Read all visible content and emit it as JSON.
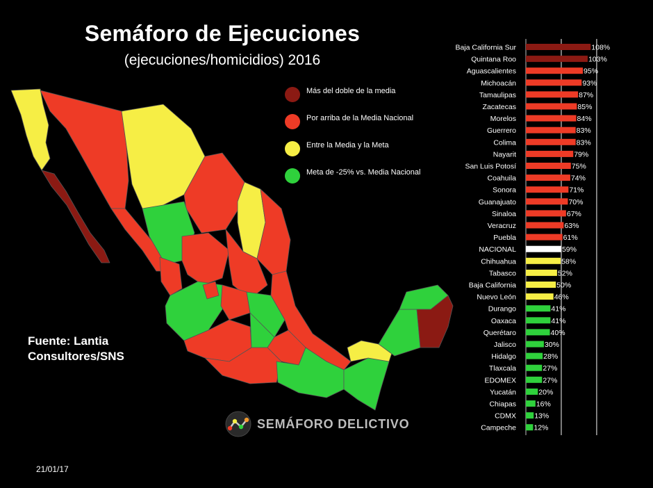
{
  "header": {
    "title": "Semáforo de Ejecuciones",
    "subtitle": "(ejecuciones/homicidios) 2016"
  },
  "legend": [
    {
      "label": "Más del doble de la media",
      "color": "#8b1a13"
    },
    {
      "label": "Por arriba de la Media Nacional",
      "color": "#ee3b26"
    },
    {
      "label": "Entre la Media y la Meta",
      "color": "#f6ee45"
    },
    {
      "label": "Meta de -25% vs. Media Nacional",
      "color": "#2fd13c"
    }
  ],
  "source": {
    "line1": "Fuente: Lantia",
    "line2": "Consultores/SNS"
  },
  "date": "21/01/17",
  "logo": {
    "text": "SEMÁFORO DELICTIVO"
  },
  "colors": {
    "dark_red": "#8b1a13",
    "red": "#ee3b26",
    "yellow": "#f6ee45",
    "green": "#2fd13c",
    "white": "#ffffff"
  },
  "chart_data": {
    "type": "bar",
    "orientation": "horizontal",
    "categories": [
      "Baja California Sur",
      "Quintana Roo",
      "Aguascalientes",
      "Michoacán",
      "Tamaulipas",
      "Zacatecas",
      "Morelos",
      "Guerrero",
      "Colima",
      "Nayarit",
      "San Luis Potosí",
      "Coahuila",
      "Sonora",
      "Guanajuato",
      "Sinaloa",
      "Veracruz",
      "Puebla",
      "NACIONAL",
      "Chihuahua",
      "Tabasco",
      "Baja California",
      "Nuevo León",
      "Durango",
      "Oaxaca",
      "Querétaro",
      "Jalisco",
      "Hidalgo",
      "Tlaxcala",
      "EDOMEX",
      "Yucatán",
      "Chiapas",
      "CDMX",
      "Campeche"
    ],
    "values": [
      108,
      103,
      95,
      93,
      87,
      85,
      84,
      83,
      83,
      79,
      75,
      74,
      71,
      70,
      67,
      63,
      61,
      59,
      58,
      52,
      50,
      46,
      41,
      41,
      40,
      30,
      28,
      27,
      27,
      20,
      16,
      13,
      12
    ],
    "value_labels": [
      "108%",
      "103%",
      "95%",
      "93%",
      "87%",
      "85%",
      "84%",
      "83%",
      "83%",
      "79%",
      "75%",
      "74%",
      "71%",
      "70%",
      "67%",
      "63%",
      "61%",
      "59%",
      "58%",
      "52%",
      "50%",
      "46%",
      "41%",
      "41%",
      "40%",
      "30%",
      "28%",
      "27%",
      "27%",
      "20%",
      "16%",
      "13%",
      "12%"
    ],
    "colors": [
      "#8b1a13",
      "#8b1a13",
      "#ee3b26",
      "#ee3b26",
      "#ee3b26",
      "#ee3b26",
      "#ee3b26",
      "#ee3b26",
      "#ee3b26",
      "#ee3b26",
      "#ee3b26",
      "#ee3b26",
      "#ee3b26",
      "#ee3b26",
      "#ee3b26",
      "#ee3b26",
      "#ee3b26",
      "#ffffff",
      "#f6ee45",
      "#f6ee45",
      "#f6ee45",
      "#f6ee45",
      "#2fd13c",
      "#2fd13c",
      "#2fd13c",
      "#2fd13c",
      "#2fd13c",
      "#2fd13c",
      "#2fd13c",
      "#2fd13c",
      "#2fd13c",
      "#2fd13c",
      "#2fd13c"
    ],
    "xlim": [
      0,
      110
    ],
    "reference_lines": [
      59,
      118
    ],
    "grid": false
  }
}
